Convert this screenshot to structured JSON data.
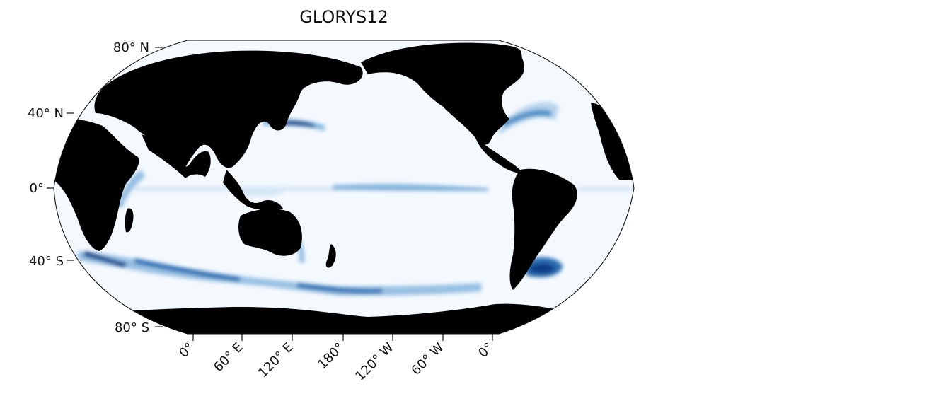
{
  "title": "GLORYS12",
  "colors": {
    "ocean": "#f4f9fe",
    "land": "#000000",
    "low": "#d4e6f6",
    "mid": "#7fb1dc",
    "high": "#2b6cb0",
    "peak": "#083e86"
  },
  "map": {
    "projection": "robinson",
    "central_longitude": 180,
    "lat_ticks": [
      "80° N",
      "40° N",
      "0°",
      "40° S",
      "80° S"
    ],
    "lon_ticks": [
      "0°",
      "60° E",
      "120° E",
      "180°",
      "120° W",
      "60° W",
      "0°"
    ]
  }
}
